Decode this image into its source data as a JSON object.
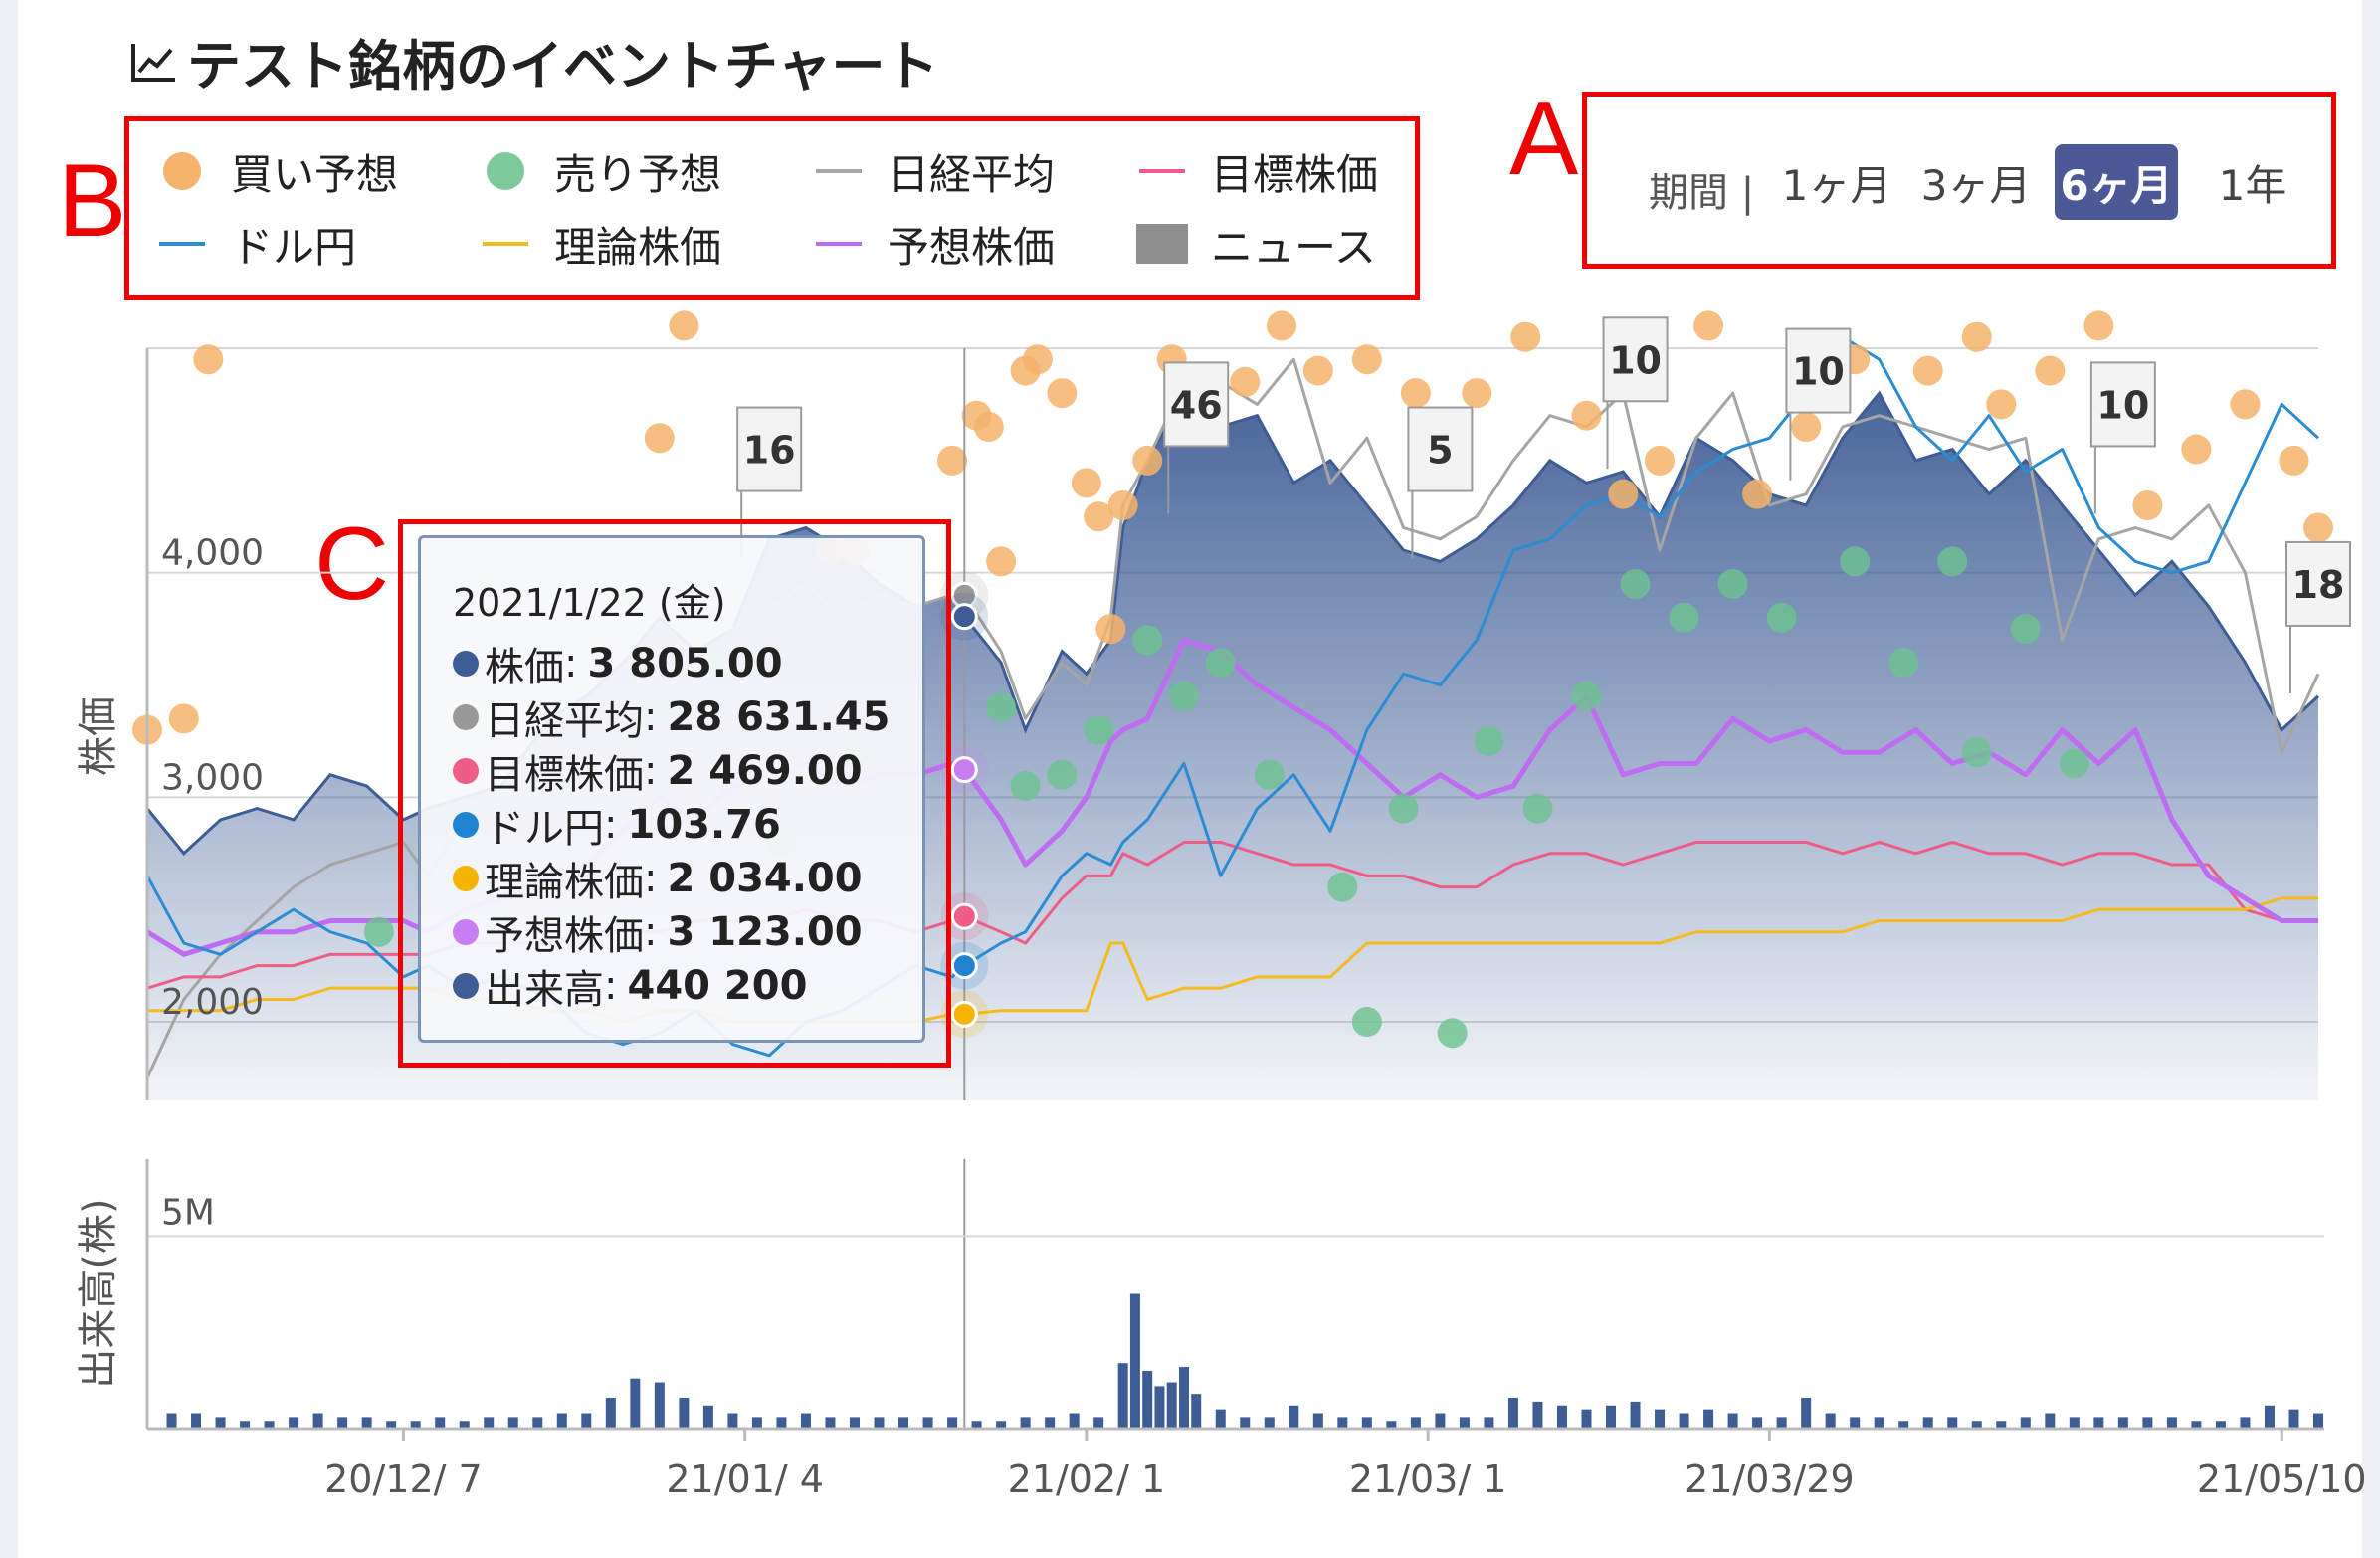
{
  "title": "テスト銘柄のイベントチャート",
  "icons": {
    "title": "line-chart-icon"
  },
  "annotations": {
    "a": "A",
    "b": "B",
    "c": "C"
  },
  "legend": [
    {
      "label": "買い予想",
      "kind": "dot",
      "color": "#f5b36b"
    },
    {
      "label": "売り予想",
      "kind": "dot",
      "color": "#7dc99a"
    },
    {
      "label": "日経平均",
      "kind": "line",
      "color": "#a5a5a5"
    },
    {
      "label": "目標株価",
      "kind": "line",
      "color": "#ef5d87"
    },
    {
      "label": "ドル円",
      "kind": "line",
      "color": "#2a8dd4"
    },
    {
      "label": "理論株価",
      "kind": "line",
      "color": "#f5bb1e"
    },
    {
      "label": "予想株価",
      "kind": "line",
      "color": "#bf6cf2"
    },
    {
      "label": "ニュース",
      "kind": "square",
      "color": "#8e8e8e"
    }
  ],
  "period": {
    "label": "期間 |",
    "options": [
      "1ヶ月",
      "3ヶ月",
      "6ヶ月",
      "1年"
    ],
    "selected": "6ヶ月"
  },
  "tooltip": {
    "date": "2021/1/22 (金)",
    "rows": [
      {
        "name": "株価",
        "value": "3 805.00",
        "color": "#3e5d95"
      },
      {
        "name": "日経平均",
        "value": "28 631.45",
        "color": "#999999"
      },
      {
        "name": "目標株価",
        "value": "2 469.00",
        "color": "#ef5d87"
      },
      {
        "name": "ドル円",
        "value": "103.76",
        "color": "#1e84d0"
      },
      {
        "name": "理論株価",
        "value": "2 034.00",
        "color": "#f5b400"
      },
      {
        "name": "予想株価",
        "value": "3 123.00",
        "color": "#c77ef2"
      },
      {
        "name": "出来高",
        "value": "440 200",
        "color": "#3e5d95"
      }
    ]
  },
  "chart_data": {
    "type": "area",
    "y_axis_title": "株価",
    "y_ticks": [
      "2,000",
      "3,000",
      "4,000"
    ],
    "y_tick_values": [
      2000,
      3000,
      4000
    ],
    "ylim": [
      1650,
      5000
    ],
    "x_ticks": [
      "20/12/ 7",
      "21/01/ 4",
      "21/02/ 1",
      "21/03/ 1",
      "21/03/29",
      "21/05/10"
    ],
    "x_tick_days": [
      21,
      49,
      77,
      105,
      133,
      175
    ],
    "xlim": [
      0,
      178
    ],
    "cursor_day": 67,
    "series": [
      {
        "name": "株価",
        "color": "#3e5d95",
        "days": [
          0,
          3,
          6,
          9,
          12,
          15,
          18,
          21,
          23,
          26,
          29,
          33,
          36,
          39,
          42,
          45,
          48,
          51,
          54,
          57,
          60,
          63,
          66,
          67,
          70,
          72,
          75,
          77,
          79,
          80,
          82,
          85,
          88,
          91,
          94,
          97,
          100,
          103,
          106,
          109,
          112,
          115,
          118,
          121,
          124,
          127,
          130,
          133,
          136,
          139,
          142,
          145,
          148,
          151,
          154,
          157,
          160,
          163,
          166,
          169,
          172,
          175,
          178
        ],
        "values": [
          2950,
          2750,
          2900,
          2950,
          2900,
          3100,
          3050,
          2900,
          2950,
          3000,
          3050,
          3350,
          3450,
          3600,
          3800,
          3650,
          3750,
          4150,
          4200,
          4100,
          3950,
          3850,
          3900,
          3805,
          3600,
          3300,
          3650,
          3550,
          3700,
          4200,
          4500,
          4800,
          4650,
          4700,
          4400,
          4500,
          4300,
          4100,
          4050,
          4150,
          4300,
          4500,
          4400,
          4450,
          4250,
          4600,
          4500,
          4350,
          4300,
          4600,
          4800,
          4500,
          4550,
          4350,
          4500,
          4300,
          4100,
          3900,
          4050,
          3850,
          3600,
          3300,
          3450
        ]
      },
      {
        "name": "日経平均",
        "color": "#a5a5a5",
        "days": [
          0,
          3,
          6,
          9,
          12,
          15,
          18,
          21,
          23,
          26,
          29,
          33,
          36,
          39,
          42,
          45,
          48,
          51,
          54,
          57,
          60,
          63,
          66,
          67,
          70,
          72,
          75,
          77,
          79,
          80,
          82,
          85,
          88,
          91,
          94,
          97,
          100,
          103,
          106,
          109,
          112,
          115,
          118,
          121,
          124,
          127,
          130,
          133,
          136,
          139,
          142,
          145,
          148,
          151,
          154,
          157,
          160,
          163,
          166,
          169,
          172,
          175,
          178
        ],
        "values": [
          1750,
          2100,
          2300,
          2450,
          2600,
          2700,
          2750,
          2800,
          2650,
          2900,
          2950,
          3100,
          3300,
          3450,
          3650,
          3600,
          3750,
          3850,
          3950,
          3800,
          3900,
          3850,
          3900,
          3900,
          3650,
          3350,
          3600,
          3500,
          3800,
          4300,
          4500,
          4850,
          4850,
          4750,
          4950,
          4400,
          4600,
          4200,
          4150,
          4250,
          4500,
          4700,
          4650,
          4800,
          4100,
          4600,
          4800,
          4300,
          4350,
          4650,
          4700,
          4650,
          4600,
          4550,
          4600,
          3700,
          4150,
          4200,
          4150,
          4300,
          4000,
          3200,
          3550
        ]
      },
      {
        "name": "ドル円",
        "color": "#2a8dd4",
        "days": [
          0,
          3,
          6,
          9,
          12,
          15,
          18,
          21,
          23,
          26,
          29,
          33,
          36,
          39,
          42,
          45,
          48,
          51,
          54,
          57,
          60,
          63,
          66,
          67,
          70,
          72,
          75,
          77,
          79,
          80,
          82,
          85,
          88,
          91,
          94,
          97,
          100,
          103,
          106,
          109,
          112,
          115,
          118,
          121,
          124,
          127,
          130,
          133,
          136,
          139,
          142,
          145,
          148,
          151,
          154,
          157,
          160,
          163,
          166,
          169,
          172,
          175,
          178
        ],
        "values": [
          2650,
          2350,
          2300,
          2400,
          2500,
          2400,
          2350,
          2200,
          2250,
          2150,
          2200,
          2100,
          1950,
          1900,
          1950,
          2050,
          1900,
          1850,
          2000,
          2050,
          2150,
          2250,
          2200,
          2250,
          2350,
          2400,
          2650,
          2750,
          2700,
          2800,
          2900,
          3150,
          2650,
          2950,
          3100,
          2850,
          3300,
          3550,
          3500,
          3700,
          4100,
          4150,
          4300,
          4350,
          4250,
          4450,
          4550,
          4600,
          4800,
          5050,
          4950,
          4650,
          4500,
          4700,
          4450,
          4550,
          4200,
          4050,
          4000,
          4050,
          4400,
          4750,
          4600
        ]
      },
      {
        "name": "目標株価",
        "color": "#ef5d87",
        "days": [
          0,
          3,
          6,
          9,
          12,
          15,
          18,
          21,
          23,
          26,
          29,
          33,
          36,
          39,
          42,
          45,
          48,
          51,
          54,
          57,
          60,
          63,
          66,
          67,
          70,
          72,
          75,
          77,
          79,
          80,
          82,
          85,
          88,
          91,
          94,
          97,
          100,
          103,
          106,
          109,
          112,
          115,
          118,
          121,
          124,
          127,
          130,
          133,
          136,
          139,
          142,
          145,
          148,
          151,
          154,
          157,
          160,
          163,
          166,
          169,
          172,
          175,
          178
        ],
        "values": [
          2150,
          2200,
          2200,
          2250,
          2250,
          2300,
          2300,
          2300,
          2300,
          2350,
          2350,
          2350,
          2400,
          2400,
          2400,
          2450,
          2450,
          2450,
          2500,
          2450,
          2450,
          2400,
          2450,
          2469,
          2400,
          2350,
          2550,
          2650,
          2650,
          2750,
          2700,
          2800,
          2800,
          2750,
          2700,
          2700,
          2650,
          2650,
          2600,
          2600,
          2700,
          2750,
          2750,
          2700,
          2750,
          2800,
          2800,
          2800,
          2800,
          2750,
          2800,
          2750,
          2800,
          2750,
          2750,
          2700,
          2750,
          2750,
          2700,
          2700,
          2500,
          2450,
          2450
        ]
      },
      {
        "name": "理論株価",
        "color": "#f5bb1e",
        "days": [
          0,
          3,
          6,
          9,
          12,
          15,
          18,
          21,
          23,
          26,
          29,
          33,
          36,
          39,
          42,
          45,
          48,
          51,
          54,
          57,
          60,
          63,
          66,
          67,
          70,
          72,
          75,
          77,
          79,
          80,
          82,
          85,
          88,
          91,
          94,
          97,
          100,
          103,
          106,
          109,
          112,
          115,
          118,
          121,
          124,
          127,
          130,
          133,
          136,
          139,
          142,
          145,
          148,
          151,
          154,
          157,
          160,
          163,
          166,
          169,
          172,
          175,
          178
        ],
        "values": [
          2050,
          2050,
          2050,
          2100,
          2100,
          2150,
          2150,
          2150,
          2150,
          2100,
          2100,
          2050,
          2050,
          2000,
          2050,
          2050,
          2000,
          2000,
          2000,
          2000,
          2000,
          2000,
          2034,
          2034,
          2050,
          2050,
          2050,
          2050,
          2350,
          2350,
          2100,
          2150,
          2150,
          2200,
          2200,
          2200,
          2350,
          2350,
          2350,
          2350,
          2350,
          2350,
          2350,
          2350,
          2350,
          2400,
          2400,
          2400,
          2400,
          2400,
          2450,
          2450,
          2450,
          2450,
          2450,
          2450,
          2500,
          2500,
          2500,
          2500,
          2500,
          2550,
          2550
        ]
      },
      {
        "name": "予想株価",
        "color": "#bf6cf2",
        "days": [
          0,
          3,
          6,
          9,
          12,
          15,
          18,
          21,
          23,
          26,
          29,
          33,
          36,
          39,
          42,
          45,
          48,
          51,
          54,
          57,
          60,
          63,
          66,
          67,
          70,
          72,
          75,
          77,
          79,
          80,
          82,
          85,
          88,
          91,
          94,
          97,
          100,
          103,
          106,
          109,
          112,
          115,
          118,
          121,
          124,
          127,
          130,
          133,
          136,
          139,
          142,
          145,
          148,
          151,
          154,
          157,
          160,
          163,
          166,
          169,
          172,
          175,
          178
        ],
        "values": [
          2400,
          2300,
          2350,
          2400,
          2400,
          2450,
          2450,
          2450,
          2400,
          2500,
          2550,
          2650,
          2700,
          2850,
          3000,
          2900,
          3050,
          3100,
          3150,
          3050,
          3100,
          3100,
          3150,
          3123,
          2900,
          2700,
          2850,
          3000,
          3250,
          3300,
          3350,
          3700,
          3650,
          3500,
          3400,
          3300,
          3150,
          3000,
          3100,
          3000,
          3050,
          3300,
          3450,
          3100,
          3150,
          3150,
          3350,
          3250,
          3300,
          3200,
          3200,
          3300,
          3150,
          3200,
          3100,
          3300,
          3150,
          3300,
          2900,
          2650,
          2550,
          2450,
          2450
        ]
      }
    ],
    "buy_days": [
      0,
      3,
      5,
      42,
      44,
      56,
      58,
      66,
      68,
      69,
      70,
      72,
      73,
      75,
      77,
      78,
      79,
      80,
      82,
      84,
      86,
      90,
      93,
      96,
      100,
      104,
      109,
      113,
      118,
      121,
      124,
      128,
      132,
      136,
      140,
      146,
      150,
      152,
      156,
      160,
      164,
      168,
      172,
      176,
      178
    ],
    "buy_values": [
      3300,
      3350,
      4950,
      4600,
      5100,
      4100,
      4100,
      4500,
      4700,
      4650,
      4050,
      4900,
      4950,
      4800,
      4400,
      4250,
      3750,
      4300,
      4500,
      4950,
      4850,
      4850,
      5100,
      4900,
      4950,
      4800,
      4800,
      5050,
      4700,
      4350,
      4500,
      5100,
      4350,
      4650,
      4950,
      4900,
      5050,
      4750,
      4900,
      5100,
      4300,
      4550,
      4750,
      4500,
      4200
    ],
    "sell_days": [
      19,
      42,
      47,
      52,
      58,
      70,
      72,
      75,
      78,
      82,
      85,
      88,
      92,
      98,
      100,
      103,
      107,
      110,
      114,
      118,
      122,
      126,
      130,
      134,
      140,
      144,
      148,
      150,
      154,
      158
    ],
    "sell_values": [
      2400,
      3400,
      3600,
      2800,
      3200,
      3400,
      3050,
      3100,
      3300,
      3700,
      3450,
      3600,
      3100,
      2600,
      2000,
      2950,
      1950,
      3250,
      2950,
      3450,
      3950,
      3800,
      3950,
      3800,
      4050,
      3600,
      4050,
      3200,
      3750,
      3150
    ],
    "news": [
      {
        "day": 51,
        "value": 4550,
        "label": "16"
      },
      {
        "day": 86,
        "value": 4750,
        "label": "46"
      },
      {
        "day": 106,
        "value": 4550,
        "label": "5"
      },
      {
        "day": 122,
        "value": 4950,
        "label": "10"
      },
      {
        "day": 137,
        "value": 4900,
        "label": "10"
      },
      {
        "day": 162,
        "value": 4750,
        "label": "10"
      },
      {
        "day": 178,
        "value": 3950,
        "label": "18"
      }
    ],
    "volume": {
      "axis_title": "出来高(株)",
      "tick": "5M",
      "tick_value": 5000000,
      "ylim": [
        0,
        7000000
      ],
      "days": [
        2,
        4,
        6,
        8,
        10,
        12,
        14,
        16,
        18,
        20,
        22,
        24,
        26,
        28,
        30,
        32,
        34,
        36,
        38,
        40,
        42,
        44,
        46,
        48,
        50,
        52,
        54,
        56,
        58,
        60,
        62,
        64,
        66,
        68,
        70,
        72,
        74,
        76,
        78,
        80,
        81,
        82,
        83,
        84,
        85,
        86,
        88,
        90,
        92,
        94,
        96,
        98,
        100,
        102,
        104,
        106,
        108,
        110,
        112,
        114,
        116,
        118,
        120,
        122,
        124,
        126,
        128,
        130,
        132,
        134,
        136,
        138,
        140,
        142,
        144,
        146,
        148,
        150,
        152,
        154,
        156,
        158,
        160,
        162,
        164,
        166,
        168,
        170,
        172,
        174,
        176,
        178
      ],
      "values": [
        400000,
        400000,
        300000,
        200000,
        200000,
        300000,
        400000,
        300000,
        300000,
        200000,
        200000,
        300000,
        200000,
        300000,
        300000,
        300000,
        400000,
        400000,
        800000,
        1300000,
        1200000,
        800000,
        600000,
        400000,
        300000,
        300000,
        400000,
        300000,
        300000,
        300000,
        300000,
        300000,
        300000,
        200000,
        200000,
        300000,
        300000,
        400000,
        300000,
        1700000,
        3500000,
        1500000,
        1100000,
        1200000,
        1600000,
        900000,
        500000,
        300000,
        300000,
        600000,
        400000,
        300000,
        300000,
        200000,
        300000,
        400000,
        300000,
        300000,
        800000,
        700000,
        600000,
        500000,
        600000,
        700000,
        500000,
        400000,
        500000,
        400000,
        300000,
        300000,
        800000,
        400000,
        300000,
        300000,
        200000,
        300000,
        300000,
        200000,
        200000,
        300000,
        400000,
        300000,
        300000,
        300000,
        300000,
        300000,
        200000,
        200000,
        300000,
        600000,
        500000,
        400000
      ]
    }
  }
}
